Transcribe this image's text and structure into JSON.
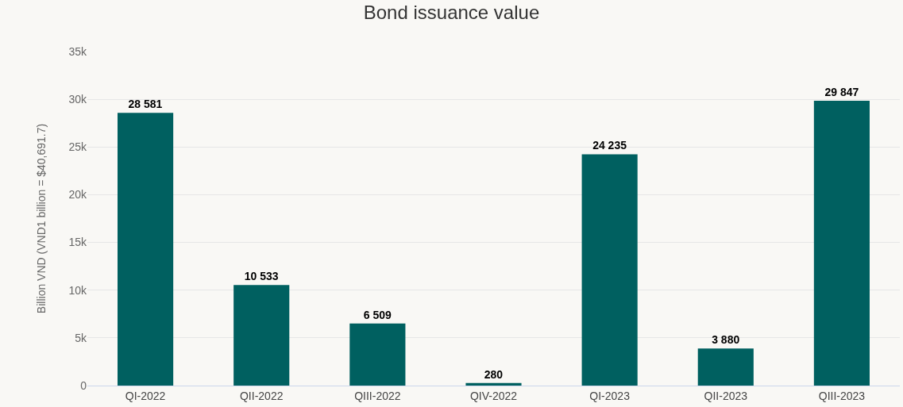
{
  "chart_data": {
    "type": "bar",
    "title": "Bond issuance value",
    "ylabel": "Billion VND (VND1 billion = $40,691.7)",
    "categories": [
      "QI-2022",
      "QII-2022",
      "QIII-2022",
      "QIV-2022",
      "QI-2023",
      "QII-2023",
      "QIII-2023"
    ],
    "values": [
      28581,
      10533,
      6509,
      280,
      24235,
      3880,
      29847
    ],
    "value_labels": [
      "28 581",
      "10 533",
      "6 509",
      "280",
      "24 235",
      "3 880",
      "29 847"
    ],
    "color": "#006060",
    "ylim": [
      0,
      35000
    ],
    "yticks": [
      0,
      {
        "value": 5000,
        "label": "5k"
      },
      {
        "value": 10000,
        "label": "10k"
      },
      {
        "value": 15000,
        "label": "15k"
      },
      {
        "value": 20000,
        "label": "20k"
      },
      {
        "value": 25000,
        "label": "25k"
      },
      {
        "value": 30000,
        "label": "30k"
      },
      {
        "value": 35000,
        "label": "35k"
      }
    ],
    "grid": "y"
  }
}
